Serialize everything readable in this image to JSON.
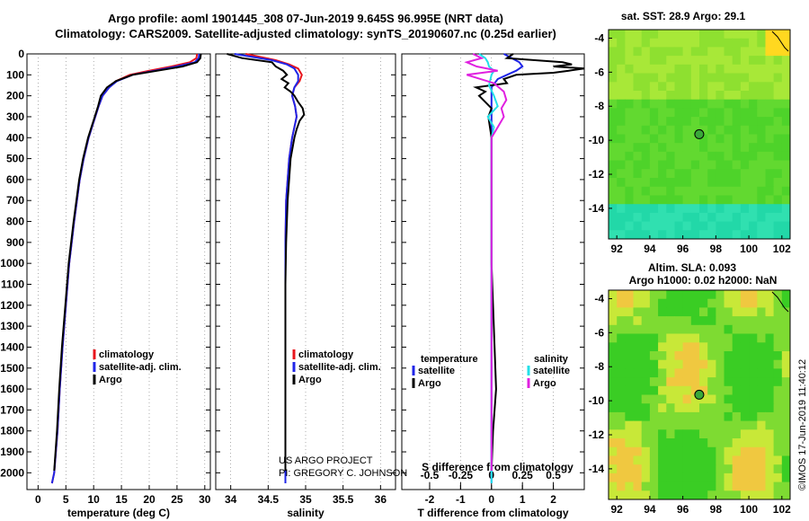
{
  "header": {
    "line1": "Argo profile: aoml 1901445_308 07-Jun-2019 9.645S 96.995E (NRT data)",
    "line2": "Climatology: CARS2009. Satellite-adjusted climatology: synTS_20190607.nc (0.25d earlier)"
  },
  "depth_axis": {
    "ticks": [
      0,
      100,
      200,
      300,
      400,
      500,
      600,
      700,
      800,
      900,
      1000,
      1100,
      1200,
      1300,
      1400,
      1500,
      1600,
      1700,
      1800,
      1900,
      2000
    ]
  },
  "colors": {
    "climatology": "#e8141c",
    "satellite": "#1f25e8",
    "argo": "#000000",
    "sat_salinity": "#22e0e8",
    "argo_salinity": "#e020e0"
  },
  "chart_data": [
    {
      "type": "line",
      "id": "temperature",
      "xlabel": "temperature (deg C)",
      "xlim": [
        -2,
        31
      ],
      "xticks": [
        0,
        5,
        10,
        15,
        20,
        25,
        30
      ],
      "ylim": [
        2080,
        0
      ],
      "legend": [
        "climatology",
        "satellite-adj. clim.",
        "Argo"
      ],
      "series": [
        {
          "name": "climatology",
          "depth": [
            0,
            20,
            40,
            60,
            80,
            100,
            130,
            160,
            200,
            250,
            300,
            400,
            500,
            600,
            700,
            800,
            1000,
            1200,
            1400,
            1600,
            1800,
            2000,
            2050
          ],
          "values": [
            28.6,
            28.5,
            27.3,
            24.0,
            20.0,
            16.5,
            14.0,
            12.8,
            11.6,
            10.9,
            10.3,
            9.1,
            8.2,
            7.5,
            7.0,
            6.5,
            5.6,
            5.0,
            4.4,
            3.9,
            3.5,
            2.9,
            2.5
          ]
        },
        {
          "name": "satellite-adj. clim.",
          "depth": [
            0,
            20,
            40,
            60,
            80,
            100,
            130,
            160,
            200,
            250,
            300,
            400,
            500,
            600,
            700,
            800,
            1000,
            1200,
            1400,
            1600,
            1800,
            2000,
            2050
          ],
          "values": [
            29.0,
            28.9,
            28.2,
            25.0,
            21.0,
            17.0,
            14.2,
            12.8,
            11.6,
            10.9,
            10.3,
            9.1,
            8.2,
            7.5,
            7.0,
            6.5,
            5.6,
            5.0,
            4.4,
            3.9,
            3.5,
            2.9,
            2.5
          ]
        },
        {
          "name": "Argo",
          "depth": [
            0,
            20,
            40,
            60,
            80,
            100,
            130,
            160,
            200,
            250,
            300,
            400,
            500,
            600,
            700,
            800,
            1000,
            1200,
            1400,
            1600,
            1800,
            1990
          ],
          "values": [
            29.3,
            29.2,
            28.6,
            26.0,
            21.5,
            17.0,
            14.0,
            12.4,
            11.3,
            10.8,
            10.2,
            9.0,
            8.1,
            7.4,
            6.9,
            6.4,
            5.5,
            4.9,
            4.3,
            3.8,
            3.4,
            2.9
          ]
        }
      ]
    },
    {
      "type": "line",
      "id": "salinity",
      "xlabel": "salinity",
      "xlim": [
        33.8,
        36.2
      ],
      "xticks": [
        34,
        34.5,
        35,
        35.5,
        36
      ],
      "ylim": [
        2080,
        0
      ],
      "legend": [
        "climatology",
        "satellite-adj. clim.",
        "Argo"
      ],
      "series": [
        {
          "name": "climatology",
          "depth": [
            0,
            30,
            50,
            70,
            100,
            130,
            160,
            200,
            250,
            300,
            400,
            500,
            700,
            900,
            1100,
            1300,
            1500,
            1700,
            1900,
            2050
          ],
          "values": [
            34.2,
            34.6,
            34.78,
            34.9,
            34.95,
            34.92,
            34.85,
            34.82,
            34.86,
            34.88,
            34.82,
            34.78,
            34.74,
            34.73,
            34.73,
            34.73,
            34.73,
            34.73,
            34.73,
            34.73
          ]
        },
        {
          "name": "satellite-adj. clim.",
          "depth": [
            0,
            30,
            50,
            70,
            100,
            130,
            160,
            200,
            250,
            300,
            400,
            500,
            700,
            900,
            1100,
            1300,
            1500,
            1700,
            1900,
            2050
          ],
          "values": [
            34.05,
            34.55,
            34.75,
            34.85,
            34.9,
            34.9,
            34.85,
            34.82,
            34.86,
            34.88,
            34.82,
            34.78,
            34.74,
            34.73,
            34.73,
            34.73,
            34.73,
            34.73,
            34.73,
            34.73
          ]
        },
        {
          "name": "Argo",
          "depth": [
            0,
            20,
            40,
            60,
            80,
            100,
            120,
            140,
            160,
            180,
            200,
            230,
            260,
            290,
            320,
            360,
            400,
            500,
            700,
            900,
            1100,
            1300,
            1500,
            1700,
            1990
          ],
          "values": [
            33.95,
            34.15,
            34.55,
            34.6,
            34.7,
            34.75,
            34.68,
            34.77,
            34.72,
            34.8,
            34.85,
            34.9,
            34.96,
            34.98,
            34.92,
            34.88,
            34.85,
            34.8,
            34.76,
            34.74,
            34.73,
            34.73,
            34.73,
            34.73,
            34.73
          ]
        }
      ]
    },
    {
      "type": "line",
      "id": "difference",
      "xlabel": "T difference from climatology",
      "x2label": "S difference from climatology",
      "xlim": [
        -2.9,
        3.0
      ],
      "xticks": [
        -2,
        -1,
        0,
        1,
        2
      ],
      "x2lim": [
        -0.725,
        0.75
      ],
      "x2ticks": [
        -0.5,
        -0.25,
        0,
        0.25,
        0.5
      ],
      "ylim": [
        2080,
        0
      ],
      "legend_left_title": "temperature",
      "legend_right_title": "salinity",
      "legend": [
        "satellite",
        "Argo",
        "satellite",
        "Argo"
      ],
      "series": [
        {
          "name": "satellite",
          "kind": "T",
          "depth": [
            0,
            40,
            60,
            80,
            100,
            120,
            160,
            200,
            300,
            400,
            600,
            800,
            1000,
            1400,
            1800,
            2050
          ],
          "values": [
            0.4,
            0.9,
            1.0,
            0.8,
            0.5,
            0.2,
            0.0,
            0.0,
            0.0,
            0.0,
            0.0,
            0.0,
            0.0,
            0.0,
            0.0,
            0.0
          ]
        },
        {
          "name": "Argo",
          "kind": "T",
          "depth": [
            0,
            20,
            40,
            50,
            60,
            70,
            80,
            90,
            100,
            120,
            140,
            160,
            180,
            200,
            230,
            260,
            300,
            400,
            600,
            800,
            1000,
            1200,
            1400,
            1600,
            1700,
            1800,
            1990
          ],
          "values": [
            0.7,
            0.5,
            2.3,
            2.6,
            2.0,
            3.0,
            2.5,
            2.0,
            0.8,
            0.4,
            0.5,
            -0.5,
            -0.2,
            -0.4,
            -0.2,
            0.0,
            -0.1,
            0.0,
            0.0,
            0.0,
            0.0,
            0.05,
            0.1,
            0.15,
            0.1,
            0.05,
            0.0
          ]
        },
        {
          "name": "satellite",
          "kind": "S",
          "depth": [
            0,
            20,
            40,
            60,
            80,
            100,
            150,
            200,
            250,
            300,
            350,
            400,
            600,
            800,
            1000,
            1400,
            1800,
            2050
          ],
          "values": [
            -0.1,
            -0.05,
            -0.03,
            -0.02,
            0.02,
            0.0,
            -0.02,
            0.02,
            0.05,
            -0.03,
            0.02,
            0.0,
            0.0,
            0.0,
            0.0,
            0.0,
            0.0,
            0.0
          ]
        },
        {
          "name": "Argo",
          "kind": "S",
          "depth": [
            0,
            20,
            40,
            60,
            80,
            100,
            140,
            180,
            220,
            260,
            300,
            350,
            400,
            600,
            800,
            1000,
            1200,
            1400,
            1800,
            1990
          ],
          "values": [
            -0.15,
            -0.08,
            -0.2,
            -0.12,
            0.05,
            -0.2,
            0.02,
            0.1,
            0.12,
            0.08,
            0.1,
            0.05,
            0.0,
            0.0,
            0.0,
            0.0,
            0.0,
            0.0,
            0.0,
            0.0
          ]
        }
      ]
    }
  ],
  "maps": {
    "top": {
      "title": "sat. SST: 28.9 Argo: 29.1",
      "yticks": [
        -4,
        -6,
        -8,
        -10,
        -12,
        -14
      ],
      "xticks": [
        92,
        94,
        96,
        98,
        100,
        102
      ],
      "xlim": [
        91.5,
        102.5
      ],
      "ylim": [
        -15.8,
        -3.5
      ],
      "float_lon": 96.995,
      "float_lat": -9.645
    },
    "bottom": {
      "title1": "Altim. SLA: 0.093",
      "title2": "Argo h1000: 0.02 h2000: NaN",
      "yticks": [
        -4,
        -6,
        -8,
        -10,
        -12,
        -14
      ],
      "xticks": [
        92,
        94,
        96,
        98,
        100,
        102
      ],
      "xlim": [
        91.5,
        102.5
      ],
      "ylim": [
        -15.8,
        -3.5
      ],
      "float_lon": 96.995,
      "float_lat": -9.645
    }
  },
  "credits": {
    "project": "US ARGO PROJECT",
    "pi": "PI: GREGORY C. JOHNSON",
    "stamp": "©IMOS 17-Jun-2019 11:40:12"
  }
}
